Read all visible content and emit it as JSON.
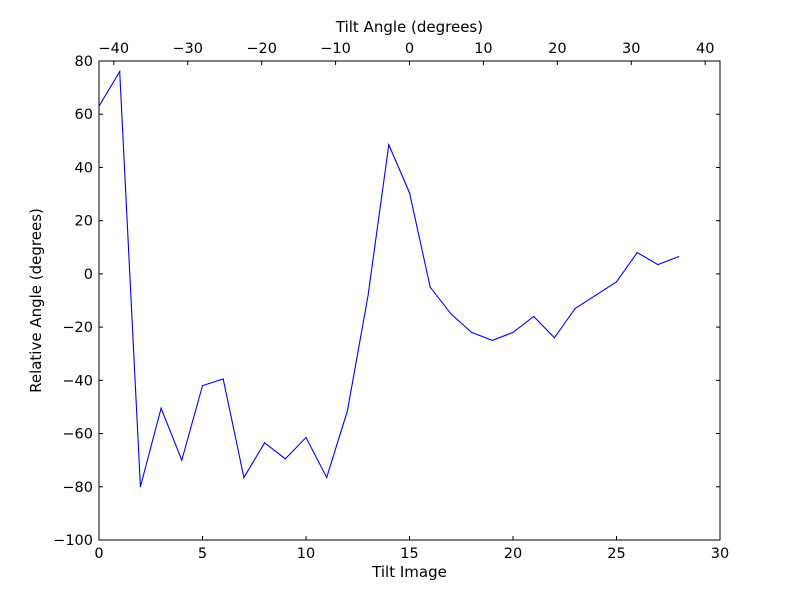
{
  "chart_data": {
    "type": "line",
    "title": "",
    "xlabel": "Tilt Image",
    "ylabel": "Relative Angle (degrees)",
    "x2label": "Tilt Angle (degrees)",
    "xlim": [
      0,
      30
    ],
    "ylim": [
      -100,
      80
    ],
    "x2lim": [
      -42,
      42
    ],
    "xticks": [
      "0",
      "5",
      "10",
      "15",
      "20",
      "25",
      "30"
    ],
    "yticks": [
      "−100",
      "−80",
      "−60",
      "−40",
      "−20",
      "0",
      "20",
      "40",
      "60",
      "80"
    ],
    "x2ticks": [
      "−40",
      "−30",
      "−20",
      "−10",
      "0",
      "10",
      "20",
      "30",
      "40"
    ],
    "grid": false,
    "legend": "none",
    "series": [
      {
        "color": "#0000ff",
        "x": [
          0,
          1,
          2,
          3,
          4,
          5,
          6,
          7,
          8,
          9,
          10,
          11,
          12,
          13,
          14,
          15,
          16,
          17,
          18,
          19,
          20,
          21,
          22,
          23,
          24,
          25,
          26,
          27,
          28
        ],
        "values": [
          63,
          76,
          -80,
          -50.5,
          -70,
          -42,
          -39.5,
          -76.5,
          -63.5,
          -69.5,
          -61.5,
          -76.5,
          -51.5,
          -8,
          48.5,
          30.5,
          -5,
          -15,
          -22,
          -25,
          -22,
          -16,
          -24,
          -13,
          -8,
          -3,
          8,
          3.5,
          6.5
        ]
      }
    ]
  }
}
